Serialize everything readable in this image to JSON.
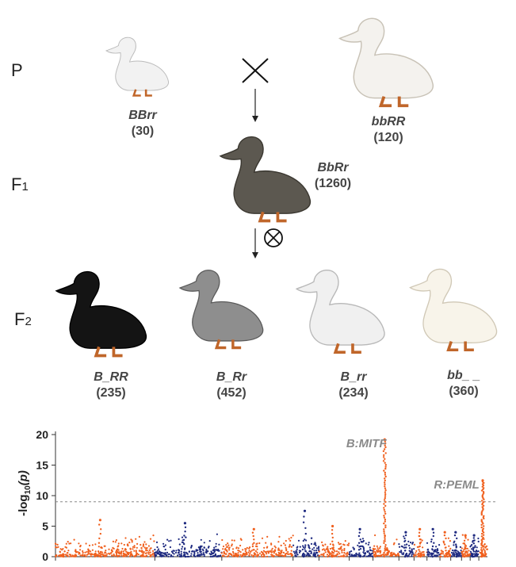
{
  "generations": {
    "p": "P",
    "f1_main": "F",
    "f1_sub": "1",
    "f2_main": "F",
    "f2_sub": "2"
  },
  "ducks": {
    "parent_a": {
      "genotype": "BBrr",
      "count": "(30)",
      "color": "#f2f2f2"
    },
    "parent_b": {
      "genotype": "bbRR",
      "count": "(120)",
      "color": "#f4f2ee"
    },
    "f1": {
      "genotype": "BbRr",
      "count": "(1260)",
      "color": "#5c5850"
    },
    "f2": [
      {
        "genotype": "B_RR",
        "count": "(235)",
        "color": "#141414"
      },
      {
        "genotype": "B_Rr",
        "count": "(452)",
        "color": "#8e8e8e"
      },
      {
        "genotype": "B_rr",
        "count": "(234)",
        "color": "#f0f0f0"
      },
      {
        "genotype": "bb_ _",
        "count": "(360)",
        "color": "#f8f4ea"
      }
    ]
  },
  "symbols": {
    "cross": "cross-icon",
    "self": "selfing-icon"
  },
  "chart_data": {
    "type": "scatter",
    "subtype": "manhattan",
    "ylabel": "-log10(p)",
    "ylabel_main": "-log",
    "ylabel_sub": "10",
    "ylabel_paren": "(p)",
    "ylim": [
      0,
      20
    ],
    "yticks": [
      0,
      5,
      10,
      15,
      20
    ],
    "threshold": 9,
    "series_colors": [
      "#f0601e",
      "#1e2a80"
    ],
    "chromosomes": [
      {
        "start": 0.0,
        "end": 0.23,
        "color": 0,
        "max": 6.0
      },
      {
        "start": 0.23,
        "end": 0.385,
        "color": 1,
        "max": 5.5
      },
      {
        "start": 0.385,
        "end": 0.55,
        "color": 0,
        "max": 4.5
      },
      {
        "start": 0.55,
        "end": 0.61,
        "color": 1,
        "max": 7.5
      },
      {
        "start": 0.61,
        "end": 0.68,
        "color": 0,
        "max": 5.0
      },
      {
        "start": 0.68,
        "end": 0.735,
        "color": 1,
        "max": 4.5
      },
      {
        "start": 0.735,
        "end": 0.795,
        "color": 0,
        "max": 19.2
      },
      {
        "start": 0.795,
        "end": 0.83,
        "color": 1,
        "max": 4.0
      },
      {
        "start": 0.83,
        "end": 0.86,
        "color": 0,
        "max": 4.5
      },
      {
        "start": 0.86,
        "end": 0.89,
        "color": 1,
        "max": 4.5
      },
      {
        "start": 0.89,
        "end": 0.915,
        "color": 0,
        "max": 4.0
      },
      {
        "start": 0.915,
        "end": 0.94,
        "color": 1,
        "max": 4.0
      },
      {
        "start": 0.94,
        "end": 0.96,
        "color": 0,
        "max": 3.5
      },
      {
        "start": 0.96,
        "end": 0.98,
        "color": 1,
        "max": 3.5
      },
      {
        "start": 0.98,
        "end": 1.0,
        "color": 0,
        "max": 12.5
      }
    ],
    "annotations": [
      {
        "text": "B:MITF",
        "x": 0.77,
        "y": 19.2
      },
      {
        "text": "R:PEML",
        "x": 0.985,
        "y": 12.5
      }
    ]
  }
}
